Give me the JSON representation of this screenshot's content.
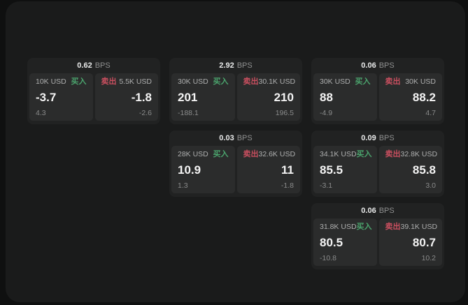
{
  "labels": {
    "bps_unit": "BPS",
    "buy": "买入",
    "sell": "卖出"
  },
  "colors": {
    "page_bg": "#0f1010",
    "surface_bg": "#1a1b1b",
    "card_bg": "#212222",
    "tile_bg": "#2b2c2c",
    "buy_green": "#4ba46d",
    "sell_red": "#c94f5f"
  },
  "cards": [
    {
      "bps": "0.62",
      "col": 1,
      "row": 1,
      "buy": {
        "amount": "10K USD",
        "price": "-3.7",
        "pnl": "4.3"
      },
      "sell": {
        "amount": "5.5K USD",
        "price": "-1.8",
        "pnl": "-2.6"
      }
    },
    {
      "bps": "2.92",
      "col": 2,
      "row": 1,
      "buy": {
        "amount": "30K USD",
        "price": "201",
        "pnl": "-188.1"
      },
      "sell": {
        "amount": "30.1K USD",
        "price": "210",
        "pnl": "196.5"
      }
    },
    {
      "bps": "0.06",
      "col": 3,
      "row": 1,
      "buy": {
        "amount": "30K USD",
        "price": "88",
        "pnl": "-4.9"
      },
      "sell": {
        "amount": "30K USD",
        "price": "88.2",
        "pnl": "4.7"
      }
    },
    {
      "bps": "0.03",
      "col": 2,
      "row": 2,
      "buy": {
        "amount": "28K USD",
        "price": "10.9",
        "pnl": "1.3"
      },
      "sell": {
        "amount": "32.6K USD",
        "price": "11",
        "pnl": "-1.8"
      }
    },
    {
      "bps": "0.09",
      "col": 3,
      "row": 2,
      "buy": {
        "amount": "34.1K USD",
        "price": "85.5",
        "pnl": "-3.1"
      },
      "sell": {
        "amount": "32.8K USD",
        "price": "85.8",
        "pnl": "3.0"
      }
    },
    {
      "bps": "0.06",
      "col": 3,
      "row": 3,
      "buy": {
        "amount": "31.8K USD",
        "price": "80.5",
        "pnl": "-10.8"
      },
      "sell": {
        "amount": "39.1K USD",
        "price": "80.7",
        "pnl": "10.2"
      }
    }
  ]
}
